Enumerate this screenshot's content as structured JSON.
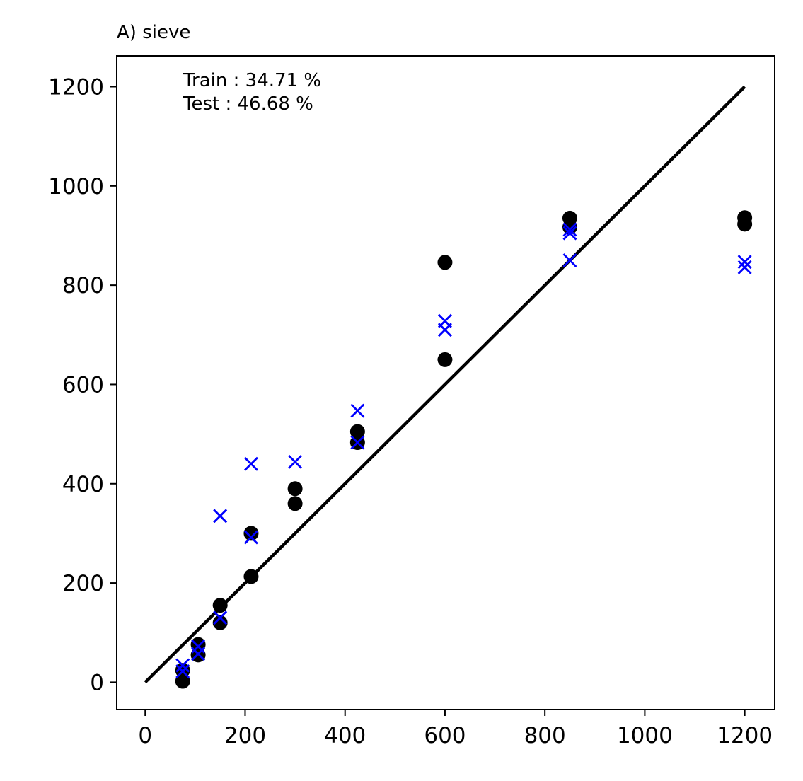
{
  "chart_data": {
    "type": "scatter",
    "title": "A) sieve",
    "xlabel": "",
    "ylabel": "",
    "xlim": [
      -57,
      1260
    ],
    "ylim": [
      -55,
      1262
    ],
    "xticks": [
      0,
      200,
      400,
      600,
      800,
      1000,
      1200
    ],
    "yticks": [
      0,
      200,
      400,
      600,
      800,
      1000,
      1200
    ],
    "grid": false,
    "annotations": [
      {
        "text": "Train : 34.71 %",
        "color": "#000000"
      },
      {
        "text": "Test : 46.68 %",
        "color": "#0000ff"
      }
    ],
    "reference_line": {
      "x": [
        0,
        1200
      ],
      "y": [
        0,
        1200
      ],
      "color": "#000000"
    },
    "series": [
      {
        "color": "#000000",
        "marker": "circle",
        "points": [
          [
            75,
            2
          ],
          [
            75,
            24
          ],
          [
            106,
            55
          ],
          [
            106,
            76
          ],
          [
            150,
            120
          ],
          [
            150,
            155
          ],
          [
            212,
            213
          ],
          [
            212,
            300
          ],
          [
            300,
            360
          ],
          [
            300,
            390
          ],
          [
            425,
            483
          ],
          [
            425,
            505
          ],
          [
            600,
            650
          ],
          [
            600,
            846
          ],
          [
            850,
            917
          ],
          [
            850,
            935
          ],
          [
            1200,
            923
          ],
          [
            1200,
            936
          ]
        ]
      },
      {
        "color": "#0000ff",
        "marker": "x",
        "points": [
          [
            75,
            22
          ],
          [
            75,
            34
          ],
          [
            106,
            57
          ],
          [
            106,
            72
          ],
          [
            150,
            130
          ],
          [
            150,
            335
          ],
          [
            212,
            292
          ],
          [
            212,
            440
          ],
          [
            300,
            444
          ],
          [
            425,
            483
          ],
          [
            425,
            547
          ],
          [
            600,
            710
          ],
          [
            600,
            728
          ],
          [
            850,
            850
          ],
          [
            850,
            905
          ],
          [
            850,
            912
          ],
          [
            1200,
            836
          ],
          [
            1200,
            847
          ]
        ]
      }
    ]
  }
}
